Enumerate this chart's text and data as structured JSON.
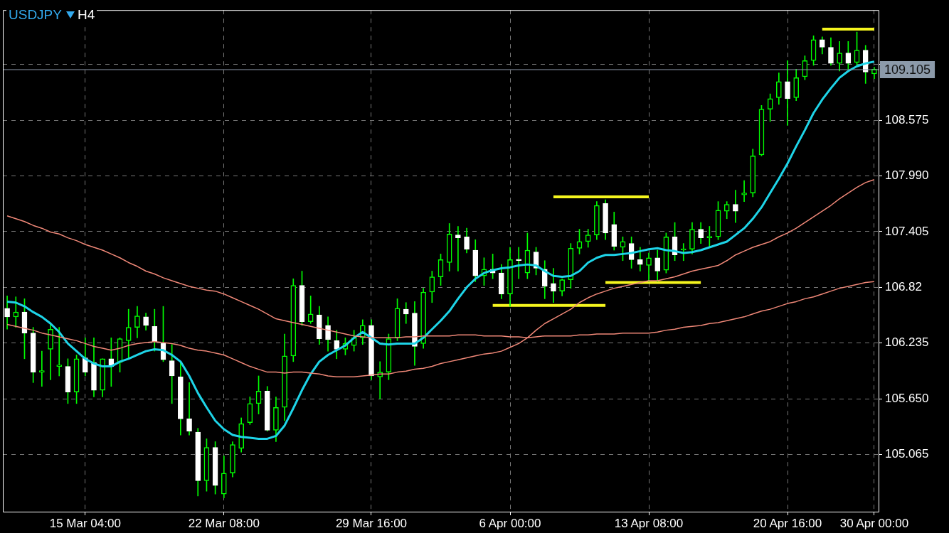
{
  "chart_data": {
    "type": "candlestick",
    "title": "USDJPY",
    "subtitle": "H4",
    "categories": [
      null,
      null,
      null,
      null,
      null,
      null,
      null,
      null,
      null,
      "15 Mar 04:00",
      null,
      null,
      null,
      null,
      null,
      null,
      null,
      null,
      null,
      null,
      null,
      null,
      null,
      null,
      null,
      "22 Mar 08:00",
      null,
      null,
      null,
      null,
      null,
      null,
      null,
      null,
      null,
      null,
      null,
      null,
      null,
      null,
      null,
      null,
      "29 Mar 16:00",
      null,
      null,
      null,
      null,
      null,
      null,
      null,
      null,
      null,
      null,
      null,
      null,
      null,
      null,
      null,
      "6 Apr 00:00",
      null,
      null,
      null,
      null,
      null,
      null,
      null,
      null,
      null,
      null,
      null,
      null,
      null,
      null,
      null,
      "13 Apr 08:00",
      null,
      null,
      null,
      null,
      null,
      null,
      null,
      null,
      null,
      null,
      null,
      null,
      null,
      null,
      null,
      "20 Apr 16:00",
      null,
      null,
      null,
      null,
      null,
      null,
      null,
      null,
      null,
      "30 Apr 00:00"
    ],
    "ohlc": [
      [
        106.6,
        106.73,
        106.38,
        106.51
      ],
      [
        106.51,
        106.72,
        106.4,
        106.56
      ],
      [
        106.56,
        106.7,
        106.07,
        106.34
      ],
      [
        106.34,
        106.4,
        105.82,
        105.93
      ],
      [
        105.93,
        106.15,
        105.78,
        105.93
      ],
      [
        106.17,
        106.44,
        105.85,
        106.38
      ],
      [
        105.99,
        106.4,
        105.89,
        106.0
      ],
      [
        105.99,
        106.07,
        105.6,
        105.72
      ],
      [
        105.72,
        106.11,
        105.6,
        106.07
      ],
      [
        106.08,
        106.29,
        105.89,
        105.93
      ],
      [
        106.03,
        106.29,
        105.67,
        105.74
      ],
      [
        105.74,
        106.07,
        105.67,
        106.07
      ],
      [
        106.07,
        106.29,
        105.78,
        105.99
      ],
      [
        106.03,
        106.29,
        105.93,
        106.28
      ],
      [
        106.26,
        106.59,
        106.07,
        106.4
      ],
      [
        106.4,
        106.62,
        106.29,
        106.52
      ],
      [
        106.51,
        106.55,
        106.37,
        106.42
      ],
      [
        106.41,
        106.59,
        106.15,
        106.25
      ],
      [
        106.23,
        106.62,
        106.04,
        106.06
      ],
      [
        106.05,
        106.22,
        105.6,
        105.89
      ],
      [
        105.88,
        106.04,
        105.27,
        105.44
      ],
      [
        105.44,
        105.82,
        105.27,
        105.31
      ],
      [
        105.3,
        105.34,
        104.63,
        104.79
      ],
      [
        104.79,
        105.23,
        104.68,
        105.14
      ],
      [
        105.14,
        105.2,
        104.65,
        104.74
      ],
      [
        104.65,
        105.05,
        104.61,
        104.87
      ],
      [
        104.87,
        105.2,
        104.83,
        105.17
      ],
      [
        105.13,
        105.45,
        105.09,
        105.39
      ],
      [
        105.4,
        105.67,
        105.38,
        105.6
      ],
      [
        105.6,
        105.89,
        105.49,
        105.73
      ],
      [
        105.73,
        105.78,
        105.31,
        105.32
      ],
      [
        105.32,
        105.67,
        105.2,
        105.56
      ],
      [
        105.56,
        106.33,
        105.42,
        106.1
      ],
      [
        106.1,
        106.91,
        106.04,
        106.84
      ],
      [
        106.84,
        106.99,
        106.42,
        106.46
      ],
      [
        106.46,
        106.73,
        106.44,
        106.54
      ],
      [
        106.53,
        106.62,
        106.22,
        106.28
      ],
      [
        106.42,
        106.51,
        106.15,
        106.27
      ],
      [
        106.26,
        106.37,
        106.07,
        106.17
      ],
      [
        106.17,
        106.29,
        106.11,
        106.23
      ],
      [
        106.21,
        106.37,
        106.15,
        106.29
      ],
      [
        106.29,
        106.48,
        106.22,
        106.42
      ],
      [
        106.42,
        106.48,
        105.85,
        105.89
      ],
      [
        105.88,
        106.04,
        105.65,
        105.93
      ],
      [
        105.93,
        106.33,
        105.85,
        106.28
      ],
      [
        106.29,
        106.7,
        106.26,
        106.6
      ],
      [
        106.59,
        106.66,
        106.44,
        106.54
      ],
      [
        106.55,
        106.67,
        106.0,
        106.2
      ],
      [
        106.23,
        106.81,
        106.18,
        106.77
      ],
      [
        106.77,
        106.99,
        106.66,
        106.93
      ],
      [
        106.93,
        107.17,
        106.84,
        107.11
      ],
      [
        107.08,
        107.49,
        106.99,
        107.38
      ],
      [
        107.37,
        107.46,
        106.99,
        107.34
      ],
      [
        107.35,
        107.44,
        107.18,
        107.22
      ],
      [
        107.21,
        107.32,
        106.88,
        106.94
      ],
      [
        106.94,
        107.13,
        106.84,
        107.01
      ],
      [
        107.01,
        107.17,
        106.91,
        106.97
      ],
      [
        106.97,
        107.06,
        106.7,
        106.75
      ],
      [
        106.75,
        107.24,
        106.62,
        107.11
      ],
      [
        107.11,
        107.24,
        106.91,
        107.1
      ],
      [
        106.97,
        107.39,
        106.91,
        107.21
      ],
      [
        107.19,
        107.24,
        106.95,
        107.02
      ],
      [
        107.01,
        107.1,
        106.7,
        106.83
      ],
      [
        106.86,
        107.02,
        106.66,
        106.78
      ],
      [
        106.78,
        106.91,
        106.73,
        106.9
      ],
      [
        106.9,
        107.28,
        106.81,
        107.23
      ],
      [
        107.23,
        107.43,
        107.17,
        107.3
      ],
      [
        107.3,
        107.43,
        107.24,
        107.37
      ],
      [
        107.37,
        107.72,
        107.32,
        107.68
      ],
      [
        107.7,
        107.74,
        107.32,
        107.39
      ],
      [
        107.48,
        107.61,
        107.21,
        107.25
      ],
      [
        107.24,
        107.35,
        107.1,
        107.3
      ],
      [
        107.28,
        107.35,
        107.02,
        107.11
      ],
      [
        107.11,
        107.24,
        106.99,
        107.06
      ],
      [
        107.05,
        107.18,
        106.88,
        107.13
      ],
      [
        107.13,
        107.21,
        106.88,
        106.99
      ],
      [
        107.0,
        107.39,
        106.97,
        107.35
      ],
      [
        107.35,
        107.5,
        107.1,
        107.16
      ],
      [
        107.21,
        107.28,
        107.1,
        107.22
      ],
      [
        107.22,
        107.5,
        107.17,
        107.43
      ],
      [
        107.43,
        107.5,
        107.28,
        107.34
      ],
      [
        107.34,
        107.46,
        107.24,
        107.35
      ],
      [
        107.35,
        107.72,
        107.32,
        107.63
      ],
      [
        107.62,
        107.72,
        107.54,
        107.69
      ],
      [
        107.69,
        107.84,
        107.5,
        107.62
      ],
      [
        107.79,
        107.94,
        107.72,
        107.81
      ],
      [
        107.81,
        108.27,
        107.77,
        108.2
      ],
      [
        108.21,
        108.73,
        108.2,
        108.69
      ],
      [
        108.69,
        108.85,
        108.56,
        108.8
      ],
      [
        108.81,
        109.07,
        108.74,
        108.98
      ],
      [
        108.98,
        109.2,
        108.52,
        108.8
      ],
      [
        108.81,
        109.11,
        108.78,
        109.02
      ],
      [
        109.03,
        109.25,
        109.0,
        109.2
      ],
      [
        109.2,
        109.46,
        109.15,
        109.42
      ],
      [
        109.42,
        109.45,
        109.27,
        109.34
      ],
      [
        109.34,
        109.44,
        109.15,
        109.17
      ],
      [
        109.17,
        109.4,
        109.09,
        109.28
      ],
      [
        109.28,
        109.4,
        109.11,
        109.17
      ],
      [
        109.18,
        109.5,
        109.15,
        109.31
      ],
      [
        109.31,
        109.36,
        108.96,
        109.08
      ],
      [
        109.06,
        109.13,
        109.01,
        109.11
      ]
    ],
    "series": [
      {
        "type": "line",
        "color": "#1ed4e8",
        "values": [
          106.67,
          106.66,
          106.62,
          106.56,
          106.51,
          106.44,
          106.35,
          106.23,
          106.15,
          106.07,
          106.02,
          105.99,
          105.99,
          106.04,
          106.07,
          106.11,
          106.15,
          106.17,
          106.16,
          106.11,
          106.04,
          105.89,
          105.71,
          105.56,
          105.42,
          105.33,
          105.27,
          105.25,
          105.24,
          105.23,
          105.23,
          105.26,
          105.37,
          105.55,
          105.74,
          105.91,
          106.04,
          106.11,
          106.16,
          106.21,
          106.29,
          106.35,
          106.29,
          106.23,
          106.22,
          106.23,
          106.23,
          106.23,
          106.29,
          106.38,
          106.47,
          106.57,
          106.7,
          106.82,
          106.91,
          106.97,
          107.0,
          107.02,
          107.03,
          107.05,
          107.06,
          107.05,
          106.99,
          106.94,
          106.93,
          106.94,
          106.99,
          107.08,
          107.13,
          107.16,
          107.16,
          107.17,
          107.18,
          107.2,
          107.22,
          107.23,
          107.21,
          107.2,
          107.18,
          107.19,
          107.21,
          107.24,
          107.27,
          107.3,
          107.37,
          107.44,
          107.54,
          107.66,
          107.81,
          107.96,
          108.12,
          108.3,
          108.47,
          108.65,
          108.79,
          108.91,
          109.02,
          109.09,
          109.14,
          109.17,
          109.19
        ]
      },
      {
        "type": "line",
        "color": "#f08878",
        "values": [
          106.43,
          106.41,
          106.39,
          106.37,
          106.34,
          106.32,
          106.3,
          106.28,
          106.26,
          106.23,
          106.2,
          106.18,
          106.16,
          106.18,
          106.21,
          106.23,
          106.24,
          106.25,
          106.24,
          106.23,
          106.21,
          106.18,
          106.16,
          106.15,
          106.13,
          106.11,
          106.07,
          106.03,
          105.99,
          105.96,
          105.93,
          105.93,
          105.92,
          105.93,
          105.93,
          105.92,
          105.91,
          105.89,
          105.88,
          105.88,
          105.88,
          105.89,
          105.9,
          105.91,
          105.91,
          105.93,
          105.94,
          105.96,
          105.97,
          105.99,
          106.02,
          106.04,
          106.06,
          106.08,
          106.1,
          106.12,
          106.13,
          106.15,
          106.19,
          106.23,
          106.29,
          106.37,
          106.44,
          106.49,
          106.54,
          106.59,
          106.66,
          106.71,
          106.75,
          106.78,
          106.81,
          106.83,
          106.85,
          106.87,
          106.89,
          106.89,
          106.91,
          106.93,
          106.96,
          106.99,
          107.01,
          107.03,
          107.05,
          107.1,
          107.16,
          107.2,
          107.24,
          107.27,
          107.3,
          107.35,
          107.39,
          107.44,
          107.5,
          107.56,
          107.62,
          107.68,
          107.75,
          107.81,
          107.87,
          107.92,
          107.95
        ]
      },
      {
        "type": "line",
        "color": "#f08878",
        "values": [
          107.57,
          107.54,
          107.51,
          107.47,
          107.44,
          107.4,
          107.38,
          107.34,
          107.31,
          107.27,
          107.24,
          107.21,
          107.17,
          107.13,
          107.08,
          107.04,
          106.99,
          106.96,
          106.92,
          106.89,
          106.86,
          106.83,
          106.81,
          106.79,
          106.78,
          106.75,
          106.71,
          106.67,
          106.63,
          106.59,
          106.54,
          106.49,
          106.47,
          106.45,
          106.43,
          106.41,
          106.39,
          106.37,
          106.35,
          106.33,
          106.31,
          106.3,
          106.29,
          106.29,
          106.29,
          106.29,
          106.3,
          106.3,
          106.31,
          106.31,
          106.31,
          106.31,
          106.32,
          106.32,
          106.32,
          106.31,
          106.31,
          106.31,
          106.3,
          106.3,
          106.29,
          106.3,
          106.31,
          106.31,
          106.31,
          106.31,
          106.32,
          106.32,
          106.33,
          106.33,
          106.33,
          106.34,
          106.34,
          106.34,
          106.34,
          106.35,
          106.37,
          106.38,
          106.4,
          106.41,
          106.42,
          106.44,
          106.45,
          106.47,
          106.49,
          106.51,
          106.54,
          106.57,
          106.59,
          106.62,
          106.65,
          106.67,
          106.7,
          106.72,
          106.75,
          106.78,
          106.81,
          106.83,
          106.85,
          106.87,
          106.88
        ]
      },
      {
        "type": "line",
        "color": "#f5f51e",
        "values": [
          null,
          null,
          null,
          null,
          null,
          null,
          null,
          null,
          null,
          null,
          null,
          null,
          null,
          null,
          null,
          null,
          null,
          null,
          null,
          null,
          null,
          null,
          null,
          null,
          null,
          null,
          null,
          null,
          null,
          null,
          null,
          null,
          null,
          null,
          null,
          null,
          null,
          null,
          null,
          null,
          null,
          null,
          null,
          null,
          null,
          null,
          null,
          null,
          null,
          null,
          null,
          null,
          null,
          null,
          null,
          null,
          null,
          null,
          null,
          null,
          null,
          null,
          null,
          107.77,
          107.77,
          107.77,
          107.77,
          107.77,
          107.77,
          107.77,
          107.77,
          107.77,
          107.77,
          107.77,
          107.77,
          null,
          null,
          null,
          null,
          null,
          null,
          null,
          null,
          null,
          null,
          null,
          null,
          null,
          null,
          null,
          null,
          null,
          null,
          null,
          null,
          null,
          null,
          null,
          null,
          null,
          null
        ]
      },
      {
        "type": "line",
        "color": "#f5f51e",
        "values": [
          null,
          null,
          null,
          null,
          null,
          null,
          null,
          null,
          null,
          null,
          null,
          null,
          null,
          null,
          null,
          null,
          null,
          null,
          null,
          null,
          null,
          null,
          null,
          null,
          null,
          null,
          null,
          null,
          null,
          null,
          null,
          null,
          null,
          null,
          null,
          null,
          null,
          null,
          null,
          null,
          null,
          null,
          null,
          null,
          null,
          null,
          null,
          null,
          null,
          null,
          null,
          null,
          null,
          null,
          null,
          null,
          106.63,
          106.63,
          106.63,
          106.63,
          106.63,
          106.63,
          106.63,
          106.63,
          106.63,
          106.63,
          106.63,
          106.63,
          106.63,
          106.63,
          null,
          null,
          null,
          null,
          null,
          null,
          null,
          null,
          null,
          null,
          null,
          null,
          null,
          null,
          null,
          null,
          null,
          null,
          null,
          null,
          null,
          null,
          null,
          null,
          null,
          null,
          null,
          null,
          null,
          null,
          null
        ]
      },
      {
        "type": "line",
        "color": "#f5f51e",
        "values": [
          null,
          null,
          null,
          null,
          null,
          null,
          null,
          null,
          null,
          null,
          null,
          null,
          null,
          null,
          null,
          null,
          null,
          null,
          null,
          null,
          null,
          null,
          null,
          null,
          null,
          null,
          null,
          null,
          null,
          null,
          null,
          null,
          null,
          null,
          null,
          null,
          null,
          null,
          null,
          null,
          null,
          null,
          null,
          null,
          null,
          null,
          null,
          null,
          null,
          null,
          null,
          null,
          null,
          null,
          null,
          null,
          null,
          null,
          null,
          null,
          null,
          null,
          null,
          null,
          null,
          null,
          null,
          null,
          null,
          106.87,
          106.87,
          106.87,
          106.87,
          106.87,
          106.87,
          106.87,
          106.87,
          106.87,
          106.87,
          106.87,
          106.87,
          null,
          null,
          null,
          null,
          null,
          null,
          null,
          null,
          null,
          null,
          null,
          null,
          null,
          null,
          null,
          null,
          null,
          null,
          null,
          null
        ]
      },
      {
        "type": "line",
        "color": "#f5f51e",
        "values": [
          null,
          null,
          null,
          null,
          null,
          null,
          null,
          null,
          null,
          null,
          null,
          null,
          null,
          null,
          null,
          null,
          null,
          null,
          null,
          null,
          null,
          null,
          null,
          null,
          null,
          null,
          null,
          null,
          null,
          null,
          null,
          null,
          null,
          null,
          null,
          null,
          null,
          null,
          null,
          null,
          null,
          null,
          null,
          null,
          null,
          null,
          null,
          null,
          null,
          null,
          null,
          null,
          null,
          null,
          null,
          null,
          null,
          null,
          null,
          null,
          null,
          null,
          null,
          null,
          null,
          null,
          null,
          null,
          null,
          null,
          null,
          null,
          null,
          null,
          null,
          null,
          null,
          null,
          null,
          null,
          null,
          null,
          null,
          null,
          null,
          null,
          null,
          null,
          null,
          null,
          null,
          null,
          null,
          null,
          109.53,
          109.53,
          109.53,
          109.53,
          109.53,
          109.53,
          109.53
        ]
      }
    ],
    "ylim": [
      104.465,
      109.73
    ],
    "yticks": [
      105.065,
      {
        "value": 105.65,
        "label": "105.650"
      },
      106.235,
      106.82,
      107.405,
      {
        "value": 107.99,
        "label": "107.990"
      },
      108.575,
      {
        "value": 109.16,
        "label": null
      }
    ],
    "grid": true,
    "ref_lines": [
      {
        "axis": "y",
        "value": 109.105,
        "label": "109.105",
        "color": "#8c9aaa"
      }
    ]
  }
}
